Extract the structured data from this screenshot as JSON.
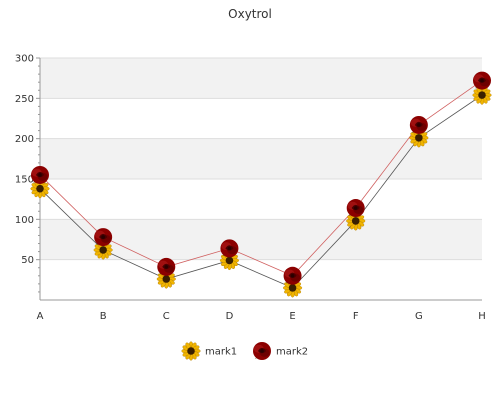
{
  "chart_data": {
    "type": "line",
    "title": "Oxytrol",
    "categories": [
      "A",
      "B",
      "C",
      "D",
      "E",
      "F",
      "G",
      "H"
    ],
    "ylim": [
      0,
      300
    ],
    "yticks": [
      "50",
      "100",
      "150",
      "200",
      "250",
      "300"
    ],
    "grid": true,
    "legend_position": "bottom",
    "series": [
      {
        "name": "mark1",
        "values": [
          138,
          62,
          26,
          49,
          15,
          98,
          201,
          254
        ],
        "marker": "sunflower-icon",
        "color": "#555555"
      },
      {
        "name": "mark2",
        "values": [
          155,
          78,
          41,
          64,
          30,
          114,
          217,
          272
        ],
        "marker": "rose-icon",
        "color": "#d06060"
      }
    ]
  },
  "colors": {
    "band": "#f2f2f2",
    "grid": "#dddddd",
    "axis": "#999999",
    "sunflower_petal": "#f0b400",
    "sunflower_center": "#3a2000",
    "rose": "#8b0000",
    "rose_dark": "#4a0000"
  }
}
